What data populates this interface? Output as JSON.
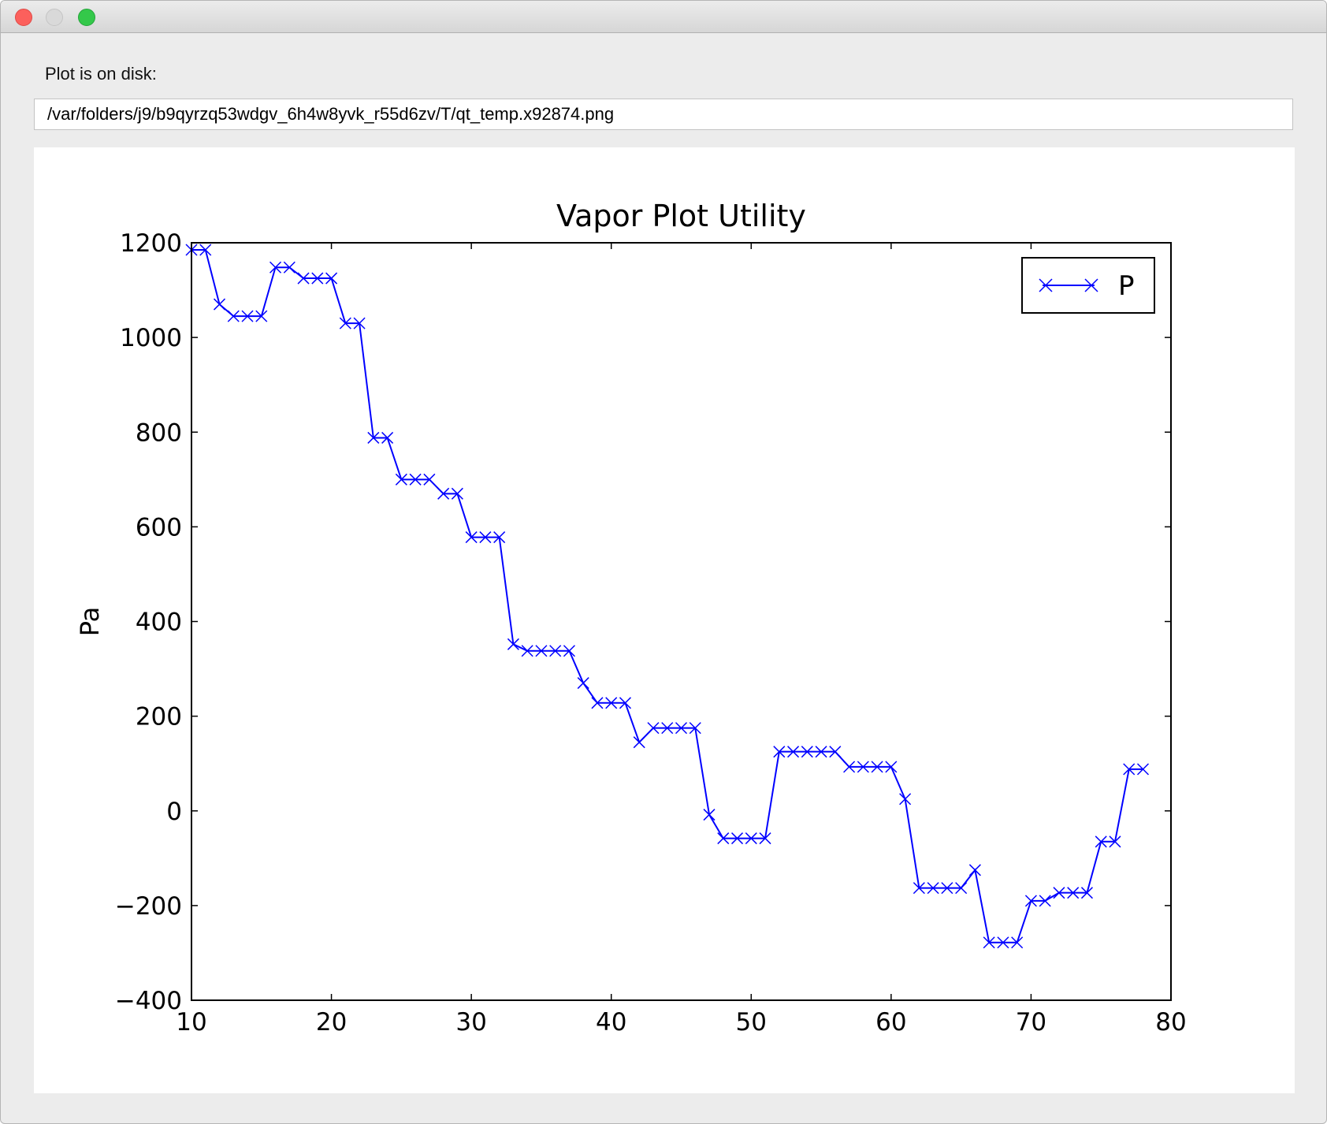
{
  "window": {
    "controls": [
      "close",
      "minimize",
      "maximize"
    ]
  },
  "label": "Plot is on disk:",
  "path": "/var/folders/j9/b9qyrzq53wdgv_6h4w8yvk_r55d6zv/T/qt_temp.x92874.png",
  "chart_data": {
    "type": "line",
    "title": "Vapor Plot Utility",
    "xlabel": "",
    "ylabel": "Pa",
    "xlim": [
      10,
      80
    ],
    "ylim": [
      -400,
      1200
    ],
    "x_ticks": [
      "10",
      "20",
      "30",
      "40",
      "50",
      "60",
      "70",
      "80"
    ],
    "y_ticks": [
      "1200",
      "1000",
      "800",
      "600",
      "400",
      "200",
      "0",
      "−200",
      "−400"
    ],
    "grid": false,
    "legend": "top-right",
    "marker": "x",
    "color": "#0000ff",
    "series": [
      {
        "name": "P",
        "x": [
          10,
          11,
          12,
          13,
          14,
          15,
          16,
          17,
          18,
          19,
          20,
          21,
          22,
          23,
          24,
          25,
          26,
          27,
          28,
          29,
          30,
          31,
          32,
          33,
          34,
          35,
          36,
          37,
          38,
          39,
          40,
          41,
          42,
          43,
          44,
          45,
          46,
          47,
          48,
          49,
          50,
          51,
          52,
          53,
          54,
          55,
          56,
          57,
          58,
          59,
          60,
          61,
          62,
          63,
          64,
          65,
          66,
          67,
          68,
          69,
          70,
          71,
          72,
          73,
          74,
          75,
          76,
          77,
          78
        ],
        "values": [
          1185,
          1185,
          1070,
          1045,
          1045,
          1045,
          1148,
          1148,
          1125,
          1125,
          1125,
          1030,
          1030,
          788,
          788,
          700,
          700,
          700,
          670,
          670,
          578,
          578,
          578,
          352,
          338,
          338,
          338,
          338,
          270,
          228,
          228,
          228,
          145,
          175,
          175,
          175,
          175,
          -8,
          -58,
          -58,
          -58,
          -58,
          125,
          125,
          125,
          125,
          125,
          93,
          93,
          93,
          93,
          25,
          -163,
          -163,
          -163,
          -163,
          -125,
          -278,
          -278,
          -278,
          -190,
          -190,
          -173,
          -173,
          -173,
          -65,
          -65,
          88,
          88
        ]
      }
    ]
  }
}
